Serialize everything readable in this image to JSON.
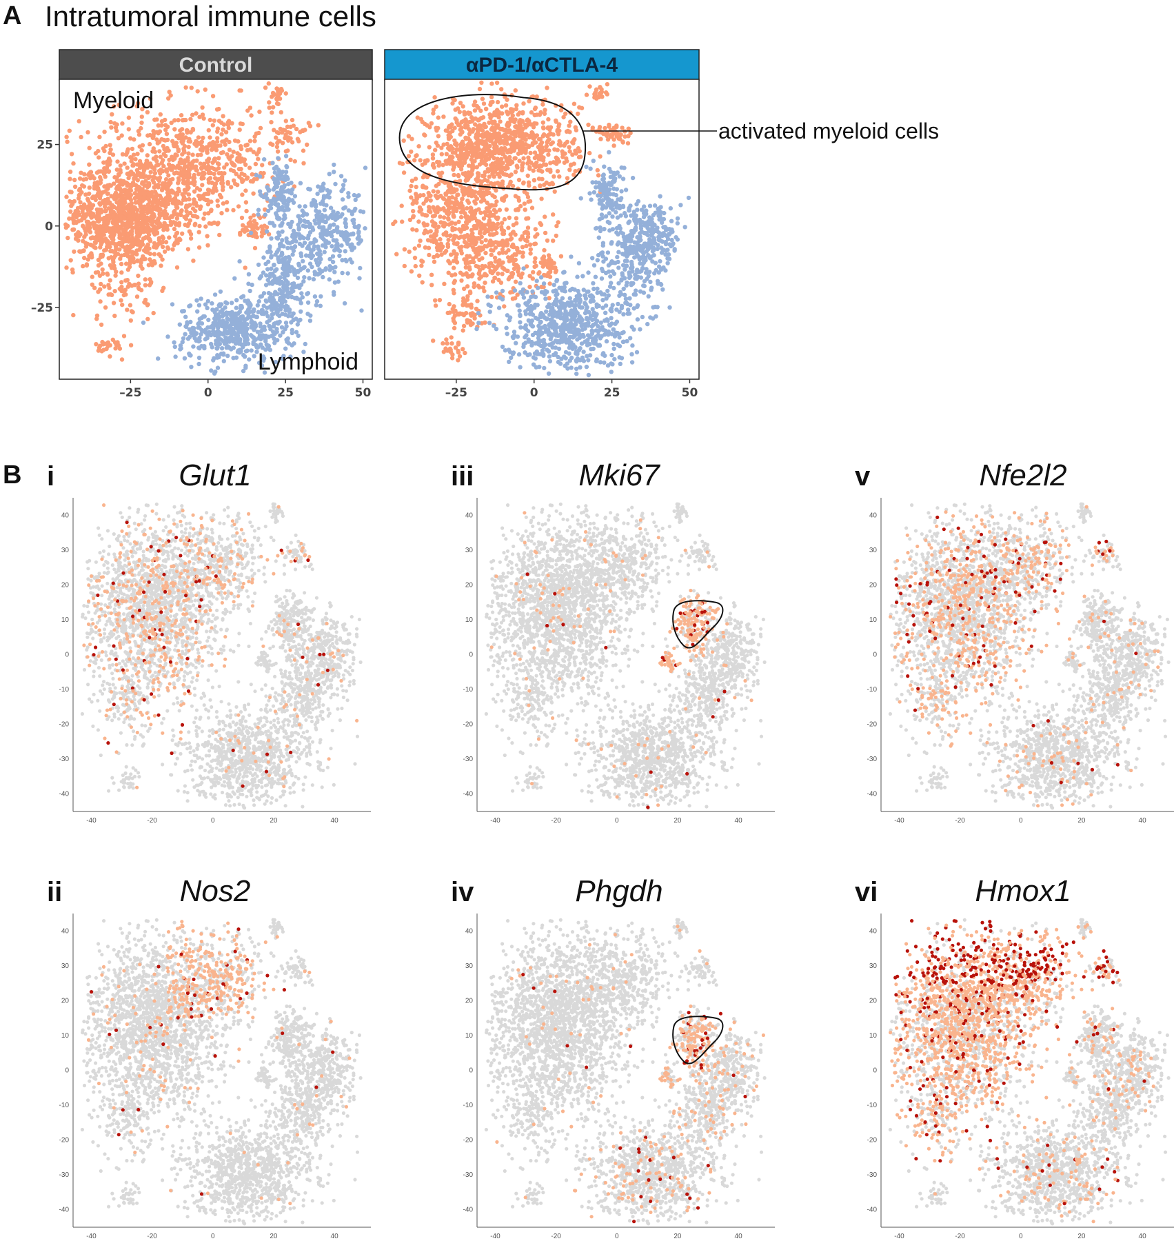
{
  "panel_a": {
    "letter": "A",
    "title": "Intratumoral immune cells"
  },
  "panel_b": {
    "letter": "B"
  },
  "colors": {
    "myeloid": "#fa9b73",
    "lymphoid": "#94b0d9",
    "control_strip": "#4d4d4d",
    "treatment_strip": "#1597cf",
    "background_cells": "#d9d9d9",
    "expr_low": "#f9b48e",
    "expr_high": "#b8120a"
  },
  "chart_data": [
    {
      "type": "scatter",
      "facet": "Control",
      "x_ticks": [
        "–25",
        "0",
        "25",
        "50"
      ],
      "x_tick_values": [
        -25,
        0,
        25,
        50
      ],
      "y_ticks": [
        "25",
        "0",
        "–25"
      ],
      "y_tick_values": [
        25,
        0,
        -25
      ],
      "xlim": [
        -48,
        53
      ],
      "ylim": [
        -47,
        45
      ],
      "cluster_labels": [
        "Myeloid",
        "Lymphoid"
      ],
      "series": [
        {
          "name": "Myeloid",
          "clusters": [
            {
              "cx": -28,
              "cy": 2,
              "sx": 10,
              "sy": 7,
              "n": 900
            },
            {
              "cx": -15,
              "cy": 16,
              "sx": 13,
              "sy": 10,
              "n": 600
            },
            {
              "cx": 5,
              "cy": 20,
              "sx": 9,
              "sy": 9,
              "n": 250
            },
            {
              "cx": -28,
              "cy": -15,
              "sx": 6,
              "sy": 8,
              "n": 120
            },
            {
              "cx": -31,
              "cy": -37,
              "sx": 2.5,
              "sy": 1.5,
              "n": 25
            },
            {
              "cx": 22,
              "cy": 40,
              "sx": 1.2,
              "sy": 2,
              "n": 25
            },
            {
              "cx": 27,
              "cy": 28,
              "sx": 3,
              "sy": 2.5,
              "n": 40
            },
            {
              "cx": 15,
              "cy": -1,
              "sx": 2,
              "sy": 2,
              "n": 40
            }
          ]
        },
        {
          "name": "Lymphoid",
          "clusters": [
            {
              "cx": 8,
              "cy": -32,
              "sx": 9,
              "sy": 5,
              "n": 450
            },
            {
              "cx": 24,
              "cy": -18,
              "sx": 5,
              "sy": 9,
              "n": 280
            },
            {
              "cx": 38,
              "cy": -2,
              "sx": 7,
              "sy": 7,
              "n": 320
            },
            {
              "cx": 23,
              "cy": 10,
              "sx": 2.5,
              "sy": 4.5,
              "n": 110
            }
          ]
        }
      ]
    },
    {
      "type": "scatter",
      "facet": "αPD-1/αCTLA-4",
      "x_ticks": [
        "–25",
        "0",
        "25",
        "50"
      ],
      "x_tick_values": [
        -25,
        0,
        25,
        50
      ],
      "xlim": [
        -48,
        53
      ],
      "ylim": [
        -47,
        45
      ],
      "annotation": "activated myeloid cells",
      "series": [
        {
          "name": "Myeloid",
          "clusters": [
            {
              "cx": -10,
              "cy": 25,
              "sx": 12,
              "sy": 7,
              "n": 850
            },
            {
              "cx": -24,
              "cy": 5,
              "sx": 9,
              "sy": 10,
              "n": 500
            },
            {
              "cx": -12,
              "cy": -8,
              "sx": 9,
              "sy": 8,
              "n": 300
            },
            {
              "cx": -22,
              "cy": -26,
              "sx": 3,
              "sy": 5,
              "n": 60
            },
            {
              "cx": -26,
              "cy": -38,
              "sx": 2,
              "sy": 1.3,
              "n": 20
            },
            {
              "cx": 21,
              "cy": 41,
              "sx": 1.5,
              "sy": 1.5,
              "n": 25
            },
            {
              "cx": 26,
              "cy": 28,
              "sx": 3,
              "sy": 2,
              "n": 45
            },
            {
              "cx": 4,
              "cy": -13,
              "sx": 2,
              "sy": 2,
              "n": 30
            }
          ]
        },
        {
          "name": "Lymphoid",
          "clusters": [
            {
              "cx": 10,
              "cy": -30,
              "sx": 10,
              "sy": 7,
              "n": 650
            },
            {
              "cx": 32,
              "cy": -10,
              "sx": 6,
              "sy": 8,
              "n": 250
            },
            {
              "cx": 38,
              "cy": -2,
              "sx": 5,
              "sy": 5,
              "n": 150
            },
            {
              "cx": 24,
              "cy": 10,
              "sx": 3,
              "sy": 4.5,
              "n": 110
            }
          ]
        }
      ]
    },
    {
      "type": "scatter",
      "roman": "i",
      "gene": "Glut1",
      "x_ticks": [
        "-40",
        "-20",
        "0",
        "20",
        "40"
      ],
      "y_ticks": [
        "40",
        "30",
        "20",
        "10",
        "0",
        "-10",
        "-20",
        "-30",
        "-40"
      ],
      "highlight": "myeloid",
      "expr_fraction": 0.22,
      "outlined_cluster": false
    },
    {
      "type": "scatter",
      "roman": "iii",
      "gene": "Mki67",
      "x_ticks": [
        "-40",
        "-20",
        "0",
        "20",
        "40"
      ],
      "y_ticks": [
        "40",
        "30",
        "20",
        "10",
        "0",
        "-10",
        "-20",
        "-30",
        "-40"
      ],
      "highlight": "proliferating",
      "expr_fraction": 0.05,
      "outlined_cluster": true
    },
    {
      "type": "scatter",
      "roman": "v",
      "gene": "Nfe2l2",
      "x_ticks": [
        "-40",
        "-20",
        "0",
        "20",
        "40"
      ],
      "y_ticks": [
        "40",
        "30",
        "20",
        "10",
        "0",
        "-10",
        "-20",
        "-30",
        "-40"
      ],
      "highlight": "myeloid",
      "expr_fraction": 0.3,
      "outlined_cluster": false
    },
    {
      "type": "scatter",
      "roman": "ii",
      "gene": "Nos2",
      "x_ticks": [
        "-40",
        "-20",
        "0",
        "20",
        "40"
      ],
      "y_ticks": [
        "40",
        "30",
        "20",
        "10",
        "0",
        "-10",
        "-20",
        "-30",
        "-40"
      ],
      "highlight": "top-myeloid",
      "expr_fraction": 0.15,
      "outlined_cluster": false
    },
    {
      "type": "scatter",
      "roman": "iv",
      "gene": "Phgdh",
      "x_ticks": [
        "-40",
        "-20",
        "0",
        "20",
        "40"
      ],
      "y_ticks": [
        "40",
        "30",
        "20",
        "10",
        "0",
        "-10",
        "-20",
        "-30",
        "-40"
      ],
      "highlight": "proliferating+lymphoid",
      "expr_fraction": 0.06,
      "outlined_cluster": true
    },
    {
      "type": "scatter",
      "roman": "vi",
      "gene": "Hmox1",
      "x_ticks": [
        "-40",
        "-20",
        "0",
        "20",
        "40"
      ],
      "y_ticks": [
        "40",
        "30",
        "20",
        "10",
        "0",
        "-10",
        "-20",
        "-30",
        "-40"
      ],
      "highlight": "myeloid-strong",
      "expr_fraction": 0.55,
      "outlined_cluster": false
    }
  ]
}
